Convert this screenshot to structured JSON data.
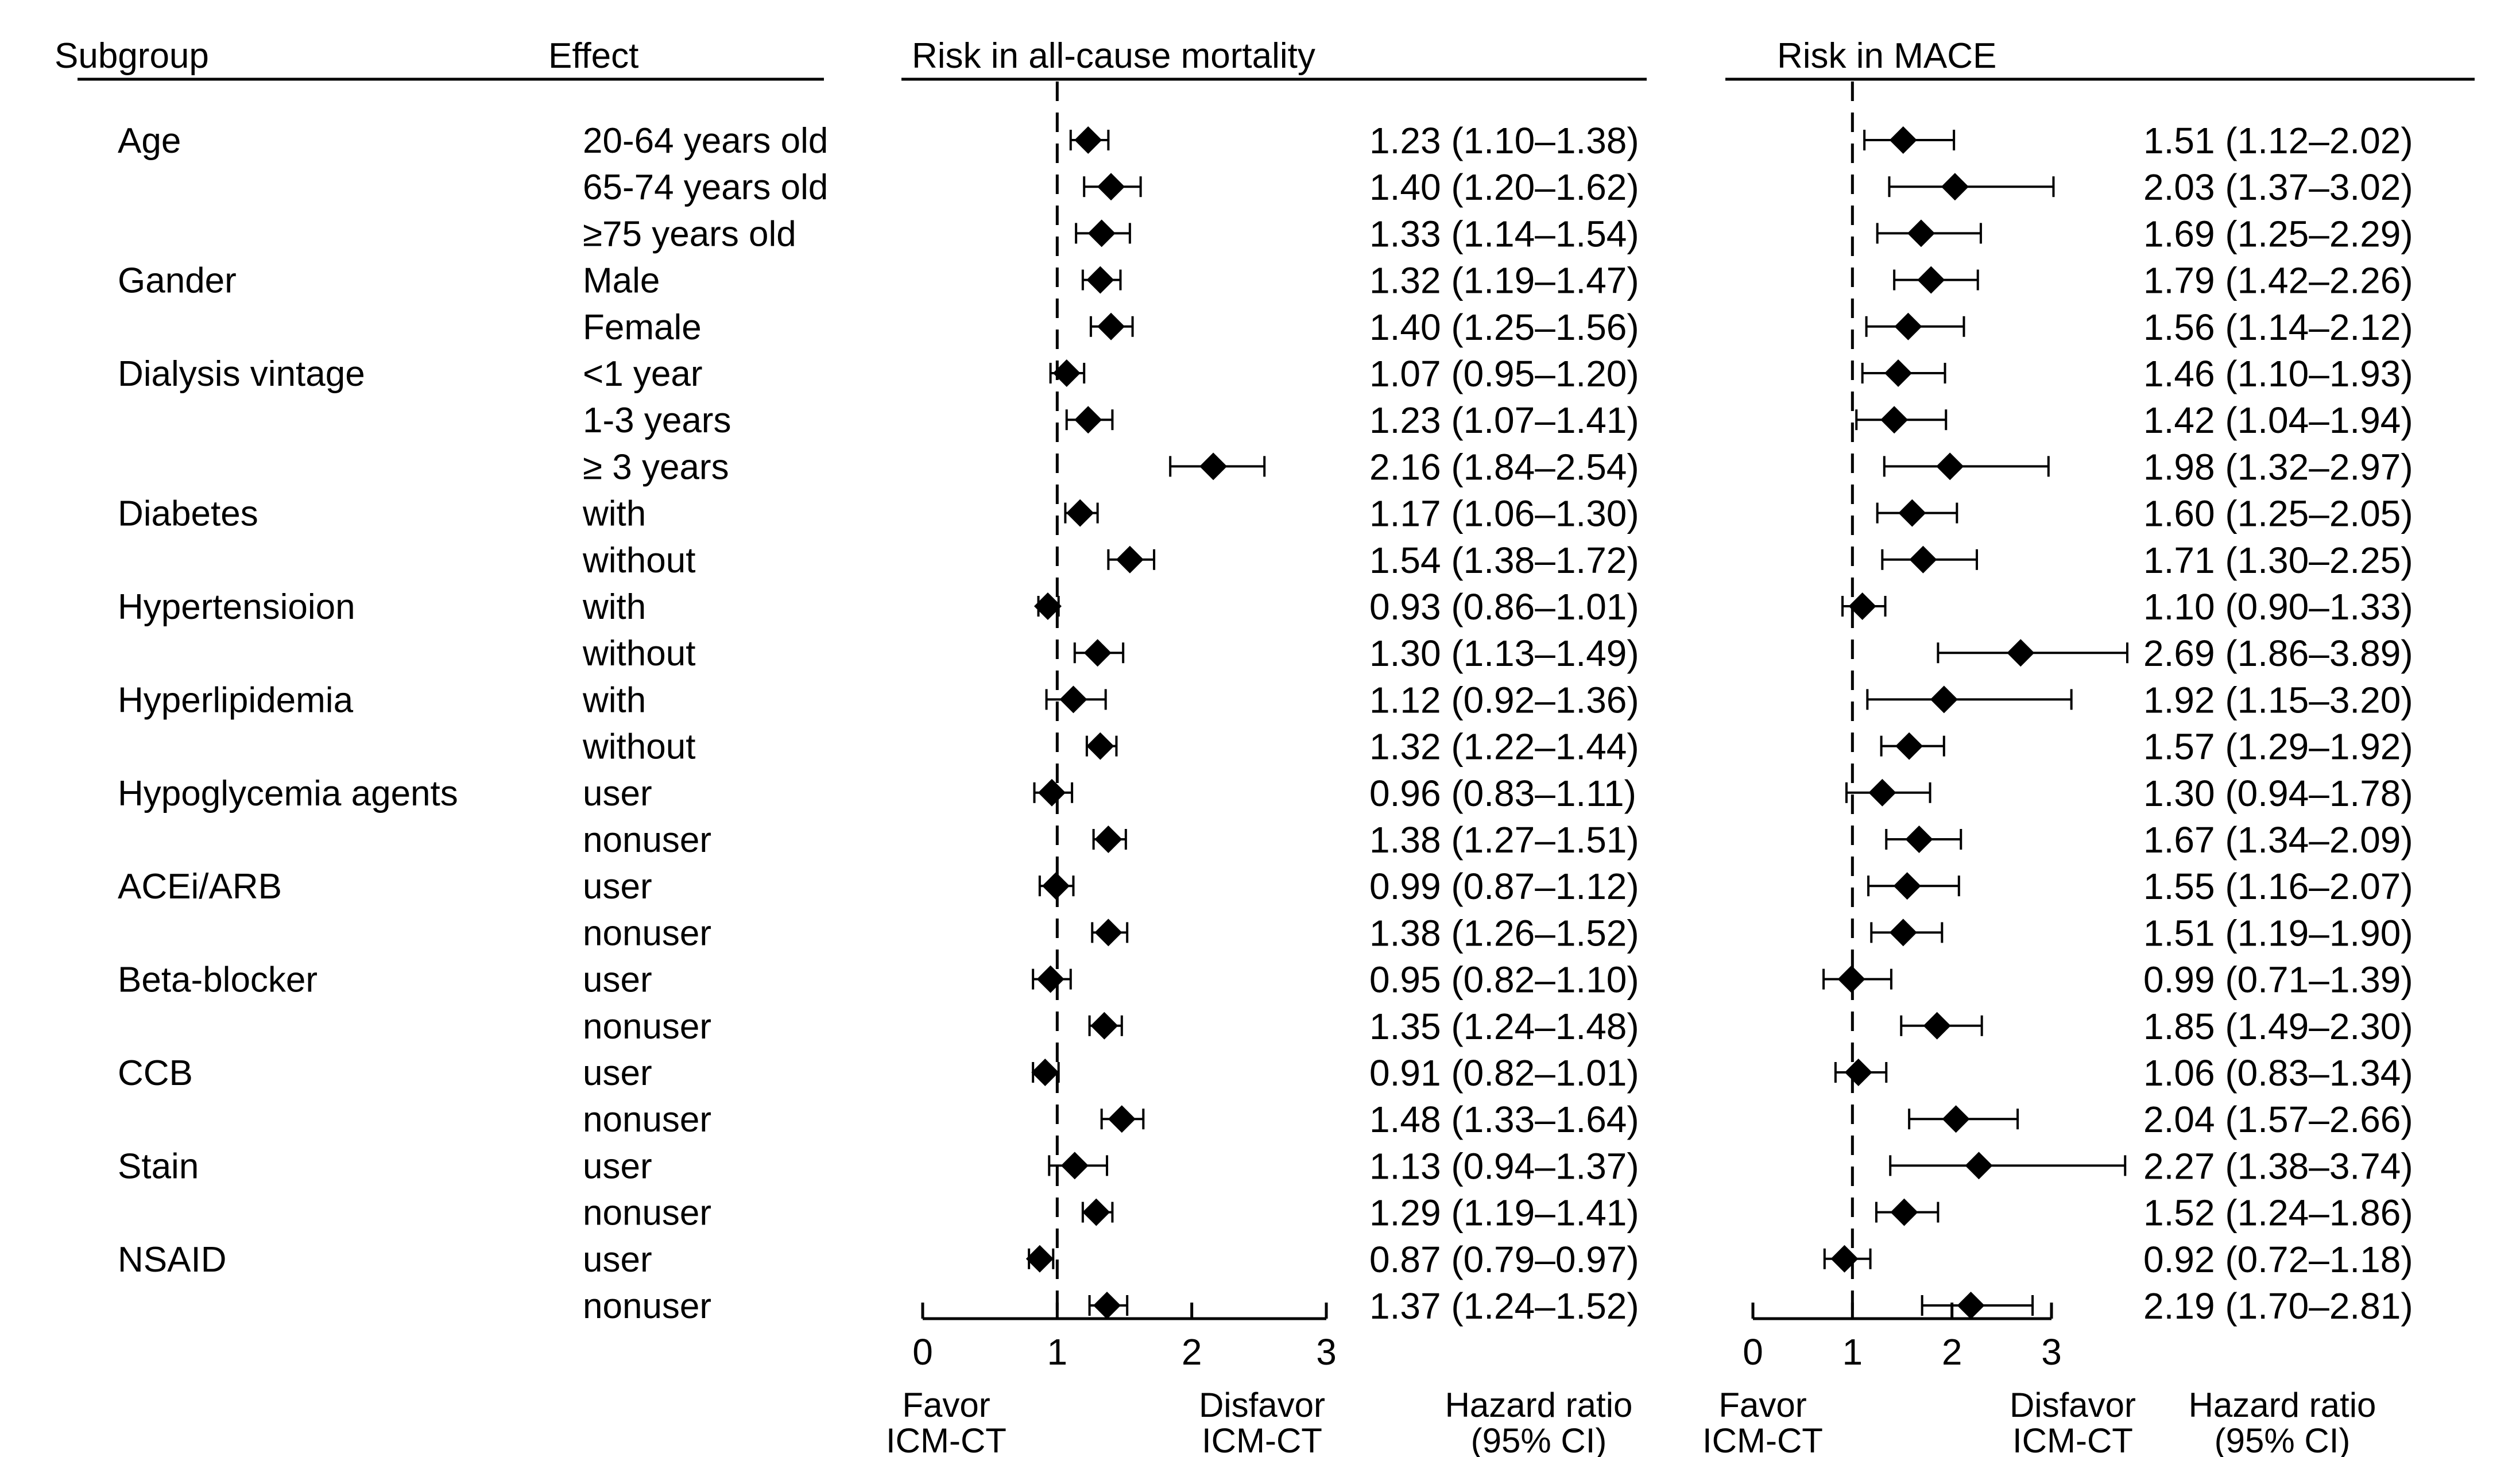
{
  "chart_data": {
    "type": "forest",
    "headers": {
      "subgroup": "Subgroup",
      "effect": "Effect"
    },
    "groups": [
      {
        "name": "Age",
        "levels": [
          "20-64 years old",
          "65-74 years old",
          "≥75 years old"
        ]
      },
      {
        "name": "Gander",
        "levels": [
          "Male",
          "Female"
        ]
      },
      {
        "name": "Dialysis vintage",
        "levels": [
          "<1 year",
          "1-3 years",
          "≥ 3 years"
        ]
      },
      {
        "name": "Diabetes",
        "levels": [
          "with",
          "without"
        ]
      },
      {
        "name": "Hypertensioion",
        "levels": [
          "with",
          "without"
        ]
      },
      {
        "name": "Hyperlipidemia",
        "levels": [
          "with",
          "without"
        ]
      },
      {
        "name": "Hypoglycemia agents",
        "levels": [
          "user",
          "nonuser"
        ]
      },
      {
        "name": "ACEi/ARB",
        "levels": [
          "user",
          "nonuser"
        ]
      },
      {
        "name": "Beta-blocker",
        "levels": [
          "user",
          "nonuser"
        ]
      },
      {
        "name": "CCB",
        "levels": [
          "user",
          "nonuser"
        ]
      },
      {
        "name": "Stain",
        "levels": [
          "user",
          "nonuser"
        ]
      },
      {
        "name": "NSAID",
        "levels": [
          "user",
          "nonuser"
        ]
      }
    ],
    "panels": [
      {
        "title": "Risk in all-cause mortality",
        "xlim": [
          0,
          3
        ],
        "ticks": [
          0,
          1,
          2,
          3
        ],
        "reference": 1,
        "favor_label": [
          "Favor",
          "ICM-CT"
        ],
        "disfavor_label": [
          "Disfavor",
          "ICM-CT"
        ],
        "hr_label": [
          "Hazard ratio",
          "(95% CI)"
        ],
        "rows": [
          {
            "hr": 1.23,
            "lo": 1.1,
            "hi": 1.38,
            "text": "1.23 (1.10–1.38)"
          },
          {
            "hr": 1.4,
            "lo": 1.2,
            "hi": 1.62,
            "text": "1.40 (1.20–1.62)"
          },
          {
            "hr": 1.33,
            "lo": 1.14,
            "hi": 1.54,
            "text": "1.33 (1.14–1.54)"
          },
          {
            "hr": 1.32,
            "lo": 1.19,
            "hi": 1.47,
            "text": "1.32 (1.19–1.47)"
          },
          {
            "hr": 1.4,
            "lo": 1.25,
            "hi": 1.56,
            "text": "1.40 (1.25–1.56)"
          },
          {
            "hr": 1.07,
            "lo": 0.95,
            "hi": 1.2,
            "text": "1.07 (0.95–1.20)"
          },
          {
            "hr": 1.23,
            "lo": 1.07,
            "hi": 1.41,
            "text": "1.23 (1.07–1.41)"
          },
          {
            "hr": 2.16,
            "lo": 1.84,
            "hi": 2.54,
            "text": "2.16 (1.84–2.54)"
          },
          {
            "hr": 1.17,
            "lo": 1.06,
            "hi": 1.3,
            "text": "1.17 (1.06–1.30)"
          },
          {
            "hr": 1.54,
            "lo": 1.38,
            "hi": 1.72,
            "text": "1.54 (1.38–1.72)"
          },
          {
            "hr": 0.93,
            "lo": 0.86,
            "hi": 1.01,
            "text": "0.93 (0.86–1.01)"
          },
          {
            "hr": 1.3,
            "lo": 1.13,
            "hi": 1.49,
            "text": "1.30 (1.13–1.49)"
          },
          {
            "hr": 1.12,
            "lo": 0.92,
            "hi": 1.36,
            "text": "1.12 (0.92–1.36)"
          },
          {
            "hr": 1.32,
            "lo": 1.22,
            "hi": 1.44,
            "text": "1.32 (1.22–1.44)"
          },
          {
            "hr": 0.96,
            "lo": 0.83,
            "hi": 1.11,
            "text": "0.96 (0.83–1.11)"
          },
          {
            "hr": 1.38,
            "lo": 1.27,
            "hi": 1.51,
            "text": "1.38 (1.27–1.51)"
          },
          {
            "hr": 0.99,
            "lo": 0.87,
            "hi": 1.12,
            "text": "0.99 (0.87–1.12)"
          },
          {
            "hr": 1.38,
            "lo": 1.26,
            "hi": 1.52,
            "text": "1.38 (1.26–1.52)"
          },
          {
            "hr": 0.95,
            "lo": 0.82,
            "hi": 1.1,
            "text": "0.95 (0.82–1.10)"
          },
          {
            "hr": 1.35,
            "lo": 1.24,
            "hi": 1.48,
            "text": "1.35 (1.24–1.48)"
          },
          {
            "hr": 0.91,
            "lo": 0.82,
            "hi": 1.01,
            "text": "0.91 (0.82–1.01)"
          },
          {
            "hr": 1.48,
            "lo": 1.33,
            "hi": 1.64,
            "text": "1.48 (1.33–1.64)"
          },
          {
            "hr": 1.13,
            "lo": 0.94,
            "hi": 1.37,
            "text": "1.13 (0.94–1.37)"
          },
          {
            "hr": 1.29,
            "lo": 1.19,
            "hi": 1.41,
            "text": "1.29 (1.19–1.41)"
          },
          {
            "hr": 0.87,
            "lo": 0.79,
            "hi": 0.97,
            "text": "0.87 (0.79–0.97)"
          },
          {
            "hr": 1.37,
            "lo": 1.24,
            "hi": 1.52,
            "text": "1.37 (1.24–1.52)"
          }
        ]
      },
      {
        "title": "Risk in MACE",
        "xlim": [
          0,
          3
        ],
        "ticks": [
          0,
          1,
          2,
          3
        ],
        "reference": 1,
        "favor_label": [
          "Favor",
          "ICM-CT"
        ],
        "disfavor_label": [
          "Disfavor",
          "ICM-CT"
        ],
        "hr_label": [
          "Hazard ratio",
          "(95% CI)"
        ],
        "rows": [
          {
            "hr": 1.51,
            "lo": 1.12,
            "hi": 2.02,
            "text": "1.51 (1.12–2.02)"
          },
          {
            "hr": 2.03,
            "lo": 1.37,
            "hi": 3.02,
            "text": "2.03 (1.37–3.02)"
          },
          {
            "hr": 1.69,
            "lo": 1.25,
            "hi": 2.29,
            "text": "1.69 (1.25–2.29)"
          },
          {
            "hr": 1.79,
            "lo": 1.42,
            "hi": 2.26,
            "text": "1.79 (1.42–2.26)"
          },
          {
            "hr": 1.56,
            "lo": 1.14,
            "hi": 2.12,
            "text": "1.56 (1.14–2.12)"
          },
          {
            "hr": 1.46,
            "lo": 1.1,
            "hi": 1.93,
            "text": "1.46 (1.10–1.93)"
          },
          {
            "hr": 1.42,
            "lo": 1.04,
            "hi": 1.94,
            "text": "1.42 (1.04–1.94)"
          },
          {
            "hr": 1.98,
            "lo": 1.32,
            "hi": 2.97,
            "text": "1.98 (1.32–2.97)"
          },
          {
            "hr": 1.6,
            "lo": 1.25,
            "hi": 2.05,
            "text": "1.60 (1.25–2.05)"
          },
          {
            "hr": 1.71,
            "lo": 1.3,
            "hi": 2.25,
            "text": "1.71 (1.30–2.25)"
          },
          {
            "hr": 1.1,
            "lo": 0.9,
            "hi": 1.33,
            "text": "1.10 (0.90–1.33)"
          },
          {
            "hr": 2.69,
            "lo": 1.86,
            "hi": 3.89,
            "text": "2.69 (1.86–3.89)"
          },
          {
            "hr": 1.92,
            "lo": 1.15,
            "hi": 3.2,
            "text": "1.92 (1.15–3.20)"
          },
          {
            "hr": 1.57,
            "lo": 1.29,
            "hi": 1.92,
            "text": "1.57 (1.29–1.92)"
          },
          {
            "hr": 1.3,
            "lo": 0.94,
            "hi": 1.78,
            "text": "1.30 (0.94–1.78)"
          },
          {
            "hr": 1.67,
            "lo": 1.34,
            "hi": 2.09,
            "text": "1.67 (1.34–2.09)"
          },
          {
            "hr": 1.55,
            "lo": 1.16,
            "hi": 2.07,
            "text": "1.55 (1.16–2.07)"
          },
          {
            "hr": 1.51,
            "lo": 1.19,
            "hi": 1.9,
            "text": "1.51 (1.19–1.90)"
          },
          {
            "hr": 0.99,
            "lo": 0.71,
            "hi": 1.39,
            "text": "0.99 (0.71–1.39)"
          },
          {
            "hr": 1.85,
            "lo": 1.49,
            "hi": 2.3,
            "text": "1.85 (1.49–2.30)"
          },
          {
            "hr": 1.06,
            "lo": 0.83,
            "hi": 1.34,
            "text": "1.06 (0.83–1.34)"
          },
          {
            "hr": 2.04,
            "lo": 1.57,
            "hi": 2.66,
            "text": "2.04 (1.57–2.66)"
          },
          {
            "hr": 2.27,
            "lo": 1.38,
            "hi": 3.74,
            "text": "2.27 (1.38–3.74)"
          },
          {
            "hr": 1.52,
            "lo": 1.24,
            "hi": 1.86,
            "text": "1.52 (1.24–1.86)"
          },
          {
            "hr": 0.92,
            "lo": 0.72,
            "hi": 1.18,
            "text": "0.92 (0.72–1.18)"
          },
          {
            "hr": 2.19,
            "lo": 1.7,
            "hi": 2.81,
            "text": "2.19 (1.70–2.81)"
          }
        ]
      }
    ]
  }
}
